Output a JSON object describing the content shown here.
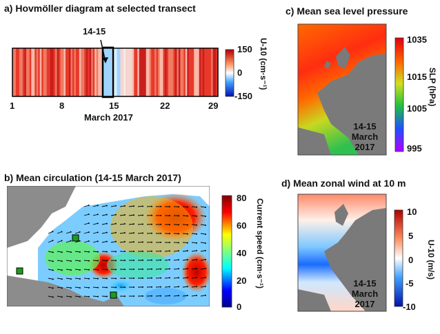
{
  "panel_a": {
    "title": "a) Hovmöller diagram at selected transect",
    "highlight_label": "14-15",
    "x_ticks": [
      "1",
      "8",
      "15",
      "22",
      "29"
    ],
    "x_title": "March 2017",
    "colorbar_ticks": [
      "150",
      "0",
      "-150"
    ],
    "colorbar_label": "U-10 (cm·s⁻¹)"
  },
  "panel_b": {
    "title": "b) Mean circulation (14-15 March 2017)",
    "colorbar_ticks": [
      "80",
      "60",
      "40",
      "20",
      "0"
    ],
    "colorbar_label": "Current speed (cm·s⁻¹)"
  },
  "panel_c": {
    "title": "c) Mean sea level pressure",
    "date_label": [
      "14-15",
      "March",
      "2017"
    ],
    "colorbar_ticks": [
      "1035",
      "1015",
      "1005",
      "995"
    ],
    "colorbar_label": "SLP (hPa)"
  },
  "panel_d": {
    "title": "d) Mean zonal wind at 10 m",
    "date_label": [
      "14-15",
      "March",
      "2017"
    ],
    "colorbar_ticks": [
      "10",
      "5",
      "0",
      "-5",
      "-10"
    ],
    "colorbar_label": "U-10 (m/s)"
  },
  "colors": {
    "land": "#8c8c8c",
    "highlight_box": "#000000",
    "station_marker": "#1a9e1a"
  }
}
